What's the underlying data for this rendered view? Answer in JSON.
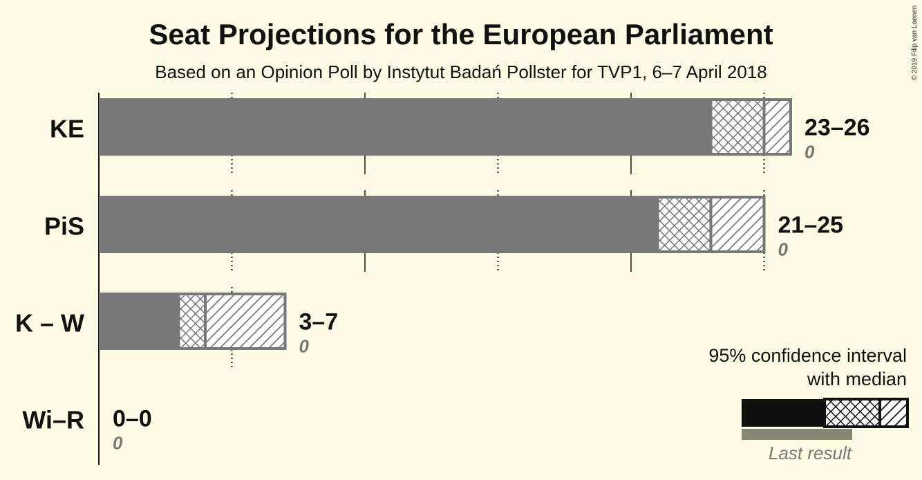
{
  "copyright": "© 2019 Filip van Laenen",
  "chart_data": {
    "type": "bar",
    "orientation": "horizontal",
    "title": "Seat Projections for the European Parliament",
    "subtitle": "Based on an Opinion Poll by Instytut Badań Pollster for TVP1, 6–7 April 2018",
    "xlim": [
      0,
      26
    ],
    "grid_major": [
      0,
      10,
      20
    ],
    "grid_minor": [
      5,
      15,
      25
    ],
    "categories": [
      "KE",
      "PiS",
      "K – W",
      "Wi–R"
    ],
    "parties": [
      {
        "name": "KE",
        "low": 23,
        "median": 25,
        "high": 26,
        "range_label": "23–26",
        "last_label": "0",
        "last": 0
      },
      {
        "name": "PiS",
        "low": 21,
        "median": 23,
        "high": 25,
        "range_label": "21–25",
        "last_label": "0",
        "last": 0
      },
      {
        "name": "K – W",
        "low": 3,
        "median": 4,
        "high": 7,
        "range_label": "3–7",
        "last_label": "0",
        "last": 0
      },
      {
        "name": "Wi–R",
        "low": 0,
        "median": 0,
        "high": 0,
        "range_label": "0–0",
        "last_label": "0",
        "last": 0
      }
    ],
    "colors": {
      "solid": "#777777",
      "legend_solid": "#111111",
      "last_result": "#888877",
      "background": "#fefbe5"
    },
    "legend": {
      "placement": "bottom-right",
      "line1": "95% confidence interval",
      "line2": "with median",
      "last_result": "Last result"
    }
  }
}
